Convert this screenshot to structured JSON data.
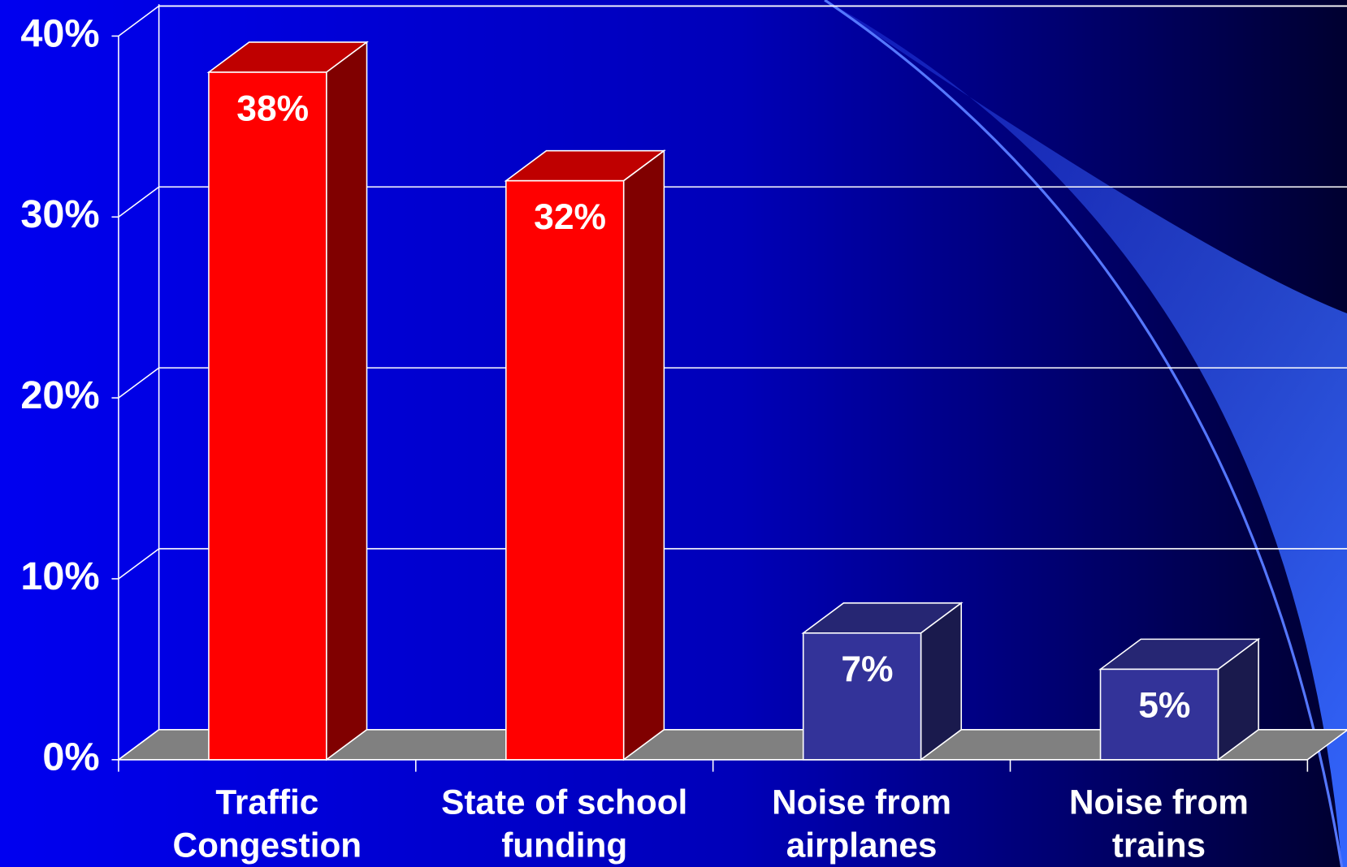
{
  "chart_data": {
    "type": "bar3d",
    "categories": [
      "Traffic Congestion",
      "State of school funding",
      "Noise from airplanes",
      "Noise from trains"
    ],
    "values": [
      38,
      32,
      7,
      5
    ],
    "value_labels": [
      "38%",
      "32%",
      "7%",
      "5%"
    ],
    "colors": [
      "#ff0000",
      "#ff0000",
      "#333399",
      "#333399"
    ],
    "ylim": [
      0,
      40
    ],
    "yticks": [
      {
        "value": 0,
        "label": "0%"
      },
      {
        "value": 10,
        "label": "10%"
      },
      {
        "value": 20,
        "label": "20%"
      },
      {
        "value": 30,
        "label": "30%"
      },
      {
        "value": 40,
        "label": "40%"
      }
    ],
    "grid": true
  }
}
